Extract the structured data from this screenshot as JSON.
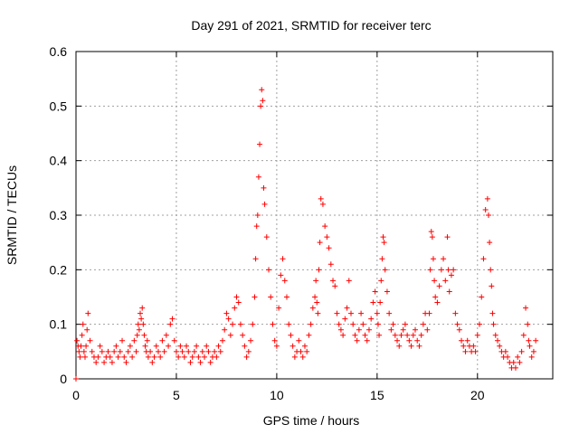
{
  "chart_data": {
    "type": "scatter",
    "title": "Day 291 of 2021, SRMTID for receiver terc",
    "xlabel": "GPS time / hours",
    "ylabel": "SRMTID / TECUs",
    "xlim": [
      0,
      23.75
    ],
    "ylim": [
      0,
      0.6
    ],
    "xticks": [
      "0",
      "5",
      "10",
      "15",
      "20"
    ],
    "yticks": [
      "0",
      "0.1",
      "0.2",
      "0.3",
      "0.4",
      "0.5",
      "0.6"
    ],
    "grid": true,
    "marker": "+",
    "color": "#ff0000",
    "series": [
      {
        "name": "SRMTID",
        "x": [
          0.0,
          0.05,
          0.1,
          0.15,
          0.2,
          0.25,
          0.3,
          0.35,
          0.4,
          0.45,
          0.5,
          0.55,
          0.6,
          0.7,
          0.8,
          0.9,
          1.0,
          1.1,
          1.2,
          1.3,
          1.4,
          1.5,
          1.6,
          1.7,
          1.8,
          1.9,
          2.0,
          2.1,
          2.2,
          2.3,
          2.4,
          2.5,
          2.6,
          2.7,
          2.8,
          2.9,
          3.0,
          3.05,
          3.1,
          3.15,
          3.2,
          3.25,
          3.3,
          3.35,
          3.4,
          3.45,
          3.5,
          3.55,
          3.6,
          3.7,
          3.8,
          3.9,
          4.0,
          4.1,
          4.2,
          4.3,
          4.4,
          4.5,
          4.6,
          4.7,
          4.8,
          4.9,
          5.0,
          5.1,
          5.2,
          5.3,
          5.4,
          5.5,
          5.6,
          5.7,
          5.8,
          5.9,
          6.0,
          6.1,
          6.2,
          6.3,
          6.4,
          6.5,
          6.6,
          6.7,
          6.8,
          6.9,
          7.0,
          7.1,
          7.2,
          7.3,
          7.4,
          7.5,
          7.6,
          7.7,
          7.8,
          7.9,
          8.0,
          8.1,
          8.2,
          8.3,
          8.4,
          8.5,
          8.6,
          8.7,
          8.8,
          8.9,
          8.95,
          9.0,
          9.05,
          9.1,
          9.15,
          9.2,
          9.25,
          9.3,
          9.35,
          9.4,
          9.5,
          9.6,
          9.7,
          9.8,
          9.9,
          10.0,
          10.1,
          10.2,
          10.3,
          10.4,
          10.5,
          10.6,
          10.7,
          10.8,
          10.9,
          11.0,
          11.1,
          11.2,
          11.3,
          11.4,
          11.5,
          11.6,
          11.7,
          11.8,
          11.9,
          11.95,
          12.0,
          12.05,
          12.1,
          12.15,
          12.2,
          12.3,
          12.4,
          12.5,
          12.6,
          12.7,
          12.8,
          12.9,
          13.0,
          13.1,
          13.2,
          13.3,
          13.4,
          13.5,
          13.6,
          13.7,
          13.8,
          13.9,
          14.0,
          14.1,
          14.2,
          14.3,
          14.4,
          14.5,
          14.6,
          14.7,
          14.8,
          14.9,
          15.0,
          15.05,
          15.1,
          15.15,
          15.2,
          15.25,
          15.3,
          15.35,
          15.4,
          15.5,
          15.6,
          15.7,
          15.8,
          15.9,
          16.0,
          16.1,
          16.2,
          16.3,
          16.4,
          16.5,
          16.6,
          16.7,
          16.8,
          16.9,
          17.0,
          17.1,
          17.2,
          17.3,
          17.4,
          17.5,
          17.6,
          17.65,
          17.7,
          17.75,
          17.8,
          17.85,
          17.9,
          18.0,
          18.1,
          18.2,
          18.3,
          18.4,
          18.5,
          18.55,
          18.6,
          18.7,
          18.8,
          18.9,
          19.0,
          19.1,
          19.2,
          19.3,
          19.4,
          19.5,
          19.6,
          19.7,
          19.8,
          19.9,
          20.0,
          20.1,
          20.2,
          20.3,
          20.4,
          20.5,
          20.55,
          20.6,
          20.65,
          20.7,
          20.75,
          20.8,
          20.9,
          21.0,
          21.1,
          21.2,
          21.3,
          21.4,
          21.5,
          21.6,
          21.7,
          21.8,
          21.9,
          22.0,
          22.1,
          22.2,
          22.3,
          22.4,
          22.5,
          22.55,
          22.6,
          22.7,
          22.8,
          22.9
        ],
        "y": [
          0.0,
          0.07,
          0.06,
          0.05,
          0.04,
          0.06,
          0.08,
          0.1,
          0.05,
          0.04,
          0.06,
          0.09,
          0.12,
          0.07,
          0.05,
          0.04,
          0.03,
          0.04,
          0.06,
          0.05,
          0.03,
          0.04,
          0.05,
          0.04,
          0.03,
          0.05,
          0.06,
          0.04,
          0.05,
          0.07,
          0.04,
          0.03,
          0.05,
          0.06,
          0.04,
          0.07,
          0.05,
          0.08,
          0.1,
          0.09,
          0.12,
          0.11,
          0.13,
          0.1,
          0.08,
          0.06,
          0.05,
          0.07,
          0.04,
          0.05,
          0.03,
          0.04,
          0.06,
          0.05,
          0.04,
          0.07,
          0.05,
          0.08,
          0.06,
          0.1,
          0.11,
          0.07,
          0.05,
          0.04,
          0.06,
          0.05,
          0.04,
          0.06,
          0.05,
          0.03,
          0.04,
          0.05,
          0.06,
          0.04,
          0.03,
          0.05,
          0.04,
          0.06,
          0.05,
          0.03,
          0.04,
          0.05,
          0.04,
          0.06,
          0.05,
          0.07,
          0.09,
          0.12,
          0.11,
          0.08,
          0.1,
          0.13,
          0.15,
          0.14,
          0.1,
          0.08,
          0.06,
          0.04,
          0.05,
          0.07,
          0.1,
          0.15,
          0.22,
          0.28,
          0.3,
          0.37,
          0.43,
          0.5,
          0.53,
          0.51,
          0.35,
          0.32,
          0.26,
          0.2,
          0.15,
          0.1,
          0.07,
          0.06,
          0.13,
          0.19,
          0.22,
          0.18,
          0.15,
          0.1,
          0.08,
          0.06,
          0.04,
          0.05,
          0.07,
          0.05,
          0.04,
          0.06,
          0.05,
          0.08,
          0.1,
          0.13,
          0.15,
          0.18,
          0.14,
          0.12,
          0.2,
          0.25,
          0.33,
          0.32,
          0.28,
          0.26,
          0.24,
          0.21,
          0.18,
          0.17,
          0.12,
          0.1,
          0.09,
          0.08,
          0.11,
          0.13,
          0.18,
          0.12,
          0.1,
          0.08,
          0.07,
          0.09,
          0.12,
          0.1,
          0.08,
          0.07,
          0.09,
          0.11,
          0.14,
          0.16,
          0.12,
          0.1,
          0.08,
          0.14,
          0.18,
          0.22,
          0.26,
          0.25,
          0.2,
          0.16,
          0.12,
          0.09,
          0.1,
          0.08,
          0.07,
          0.06,
          0.08,
          0.09,
          0.1,
          0.08,
          0.07,
          0.06,
          0.08,
          0.09,
          0.07,
          0.06,
          0.08,
          0.1,
          0.12,
          0.09,
          0.12,
          0.2,
          0.27,
          0.26,
          0.22,
          0.18,
          0.15,
          0.14,
          0.17,
          0.2,
          0.22,
          0.18,
          0.26,
          0.2,
          0.16,
          0.19,
          0.2,
          0.12,
          0.1,
          0.09,
          0.07,
          0.06,
          0.05,
          0.07,
          0.06,
          0.05,
          0.06,
          0.05,
          0.08,
          0.1,
          0.15,
          0.22,
          0.31,
          0.33,
          0.3,
          0.25,
          0.2,
          0.17,
          0.12,
          0.1,
          0.08,
          0.07,
          0.06,
          0.05,
          0.04,
          0.05,
          0.04,
          0.03,
          0.02,
          0.03,
          0.02,
          0.04,
          0.03,
          0.05,
          0.08,
          0.13,
          0.1,
          0.07,
          0.06,
          0.04,
          0.05,
          0.07
        ]
      }
    ]
  }
}
